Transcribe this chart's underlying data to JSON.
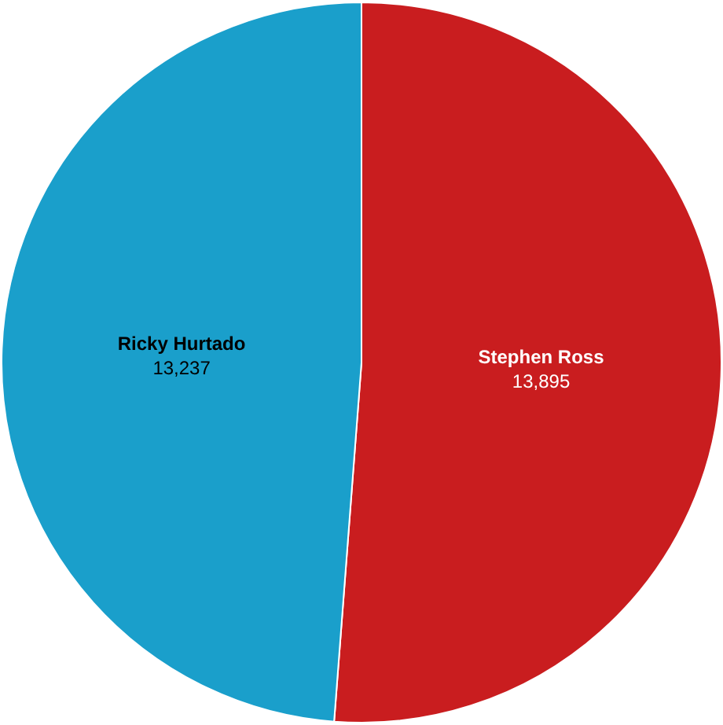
{
  "chart_data": {
    "type": "pie",
    "categories": [
      "Stephen Ross",
      "Ricky Hurtado"
    ],
    "values": [
      13895,
      13237
    ],
    "colors": [
      "#c91d1f",
      "#1a9fcb"
    ],
    "value_labels": [
      "13,895",
      "13,237"
    ],
    "legend": false
  }
}
